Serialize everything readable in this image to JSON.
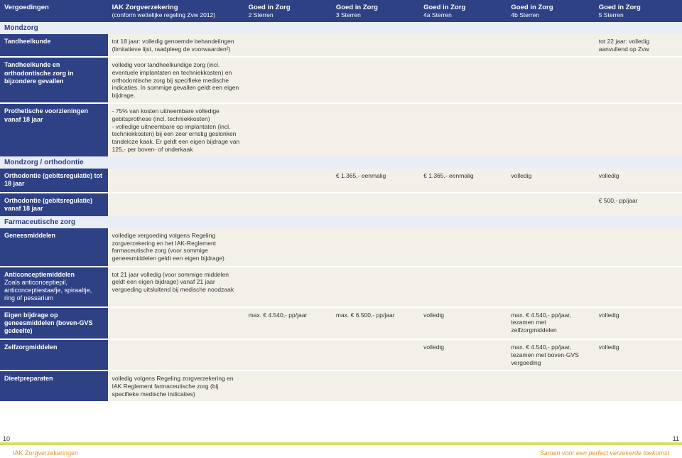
{
  "header": {
    "col1": "Vergoedingen",
    "col2": "IAK Zorgverzekering",
    "col2sub": "(conform wettelijke regeling Zvw 2012)",
    "plans": [
      {
        "t": "Goed in Zorg",
        "s": "2 Sterren"
      },
      {
        "t": "Goed in Zorg",
        "s": "3 Sterren"
      },
      {
        "t": "Goed in Zorg",
        "s": "4a Sterren"
      },
      {
        "t": "Goed in Zorg",
        "s": "4b Sterren"
      },
      {
        "t": "Goed in Zorg",
        "s": "5 Sterren"
      }
    ]
  },
  "sec1": "Mondzorg",
  "r1": {
    "label": "Tandheelkunde",
    "iak": "tot 18 jaar: volledig genoemde behandelingen (limitatieve lijst, raadpleeg de voorwaarden²)",
    "p5": "tot 22 jaar: volledig aanvullend op Zvw"
  },
  "r2": {
    "label": "Tandheelkunde en orthodontische zorg in bijzondere gevallen",
    "iak": "volledig voor tandheelkundige zorg (incl. eventuele implantaten en techniekkosten) en orthodontische zorg bij specifieke medische indicaties. In sommige gevallen geldt een eigen bijdrage."
  },
  "r3": {
    "label": "Prothetische voorzieningen vanaf 18 jaar",
    "iak": "- 75% van kosten uitneembare volledige gebitsprothese (incl. techniekkosten)\n- volledige uitneembare op implantaten (incl. techniekkosten) bij een zeer ernstig geslonken tandeloze kaak. Er geldt een eigen bijdrage van 125,- per boven- of onderkaak"
  },
  "sec2": "Mondzorg / orthodontie",
  "r4": {
    "label": "Orthodontie (gebitsregulatie) tot 18 jaar",
    "p3": "€ 1.365,- eenmalig",
    "p4a": "€ 1.365,- eenmalig",
    "p4b": "volledig",
    "p5": "volledig"
  },
  "r5": {
    "label": "Orthodontie (gebitsregulatie) vanaf 18 jaar",
    "p5": "€ 500,- pp/jaar"
  },
  "sec3": "Farmaceutische zorg",
  "r6": {
    "label": "Geneesmiddelen",
    "iak": "volledige vergoeding volgens Regeling zorgverzekering en het IAK-Reglement farmaceutische zorg (voor sommige geneesmiddelen geldt een eigen bijdrage)"
  },
  "r7": {
    "label": "Anticonceptiemiddelen",
    "labelsub": "Zoals anticonceptiepil, anticonceptiestaafje, spiraaltje, ring of pessarium",
    "iak": "tot 21 jaar volledig (voor sommige middelen geldt een eigen bijdrage) vanaf 21 jaar vergoeding uitsluitend bij medische noodzaak"
  },
  "r8": {
    "label": "Eigen bijdrage op geneesmiddelen (boven-GVS gedeelte)",
    "p2": "max. € 4.540,- pp/jaar",
    "p3": "max. € 6.500,- pp/jaar",
    "p4a": "volledig",
    "p4b": "max. € 4.540,- pp/jaar, tezamen met zelfzorgmiddelen",
    "p5": "volledig"
  },
  "r9": {
    "label": "Zelfzorgmiddelen",
    "p4a": "volledig",
    "p4b": "max. € 4.540,- pp/jaar, tezamen met boven-GVS vergoeding",
    "p5": "volledig"
  },
  "r10": {
    "label": "Dieetpreparaten",
    "iak": "volledig volgens Regeling zorgverzekering en IAK Reglement farmaceutische zorg (bij specifieke medische indicaties)"
  },
  "footer": {
    "pgl": "10",
    "pgr": "11",
    "brand": "IAK Zorgverzekeringen",
    "slogan": "Samen voor een perfect verzekerde toekomst"
  }
}
